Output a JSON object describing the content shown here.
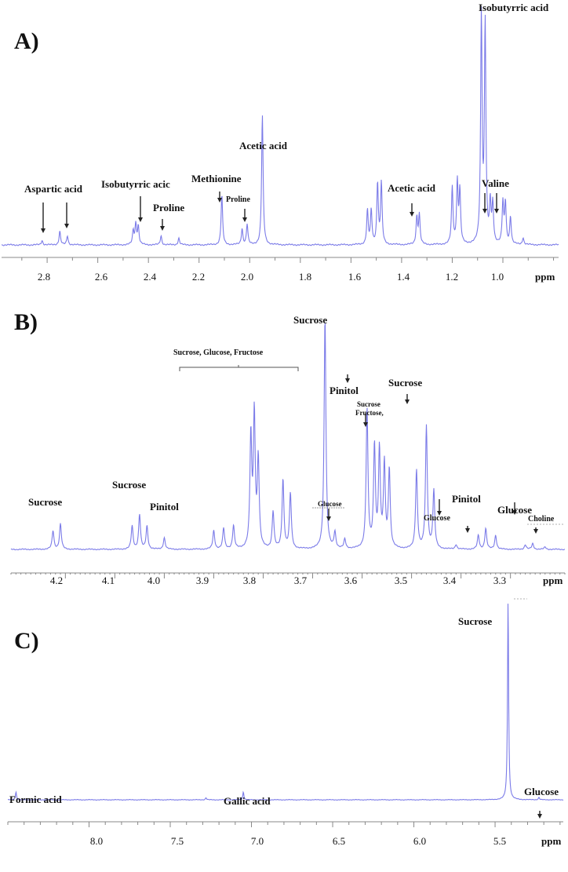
{
  "colors": {
    "spectrum": "#7b7be8",
    "axis": "#888888",
    "text": "#111111",
    "arrow": "#222222"
  },
  "chart_data": [
    {
      "panel": "A)",
      "type": "line",
      "title": "A)",
      "xlabel": "ppm",
      "xlim": [
        2.98,
        0.78
      ],
      "x_ticks": [
        2.8,
        2.6,
        2.4,
        2.2,
        2.0,
        1.8,
        1.6,
        1.4,
        1.2,
        1.0
      ],
      "x_tick_labels": [
        "2.8",
        "2.6",
        "2.4",
        "2.2",
        "2.0",
        "1.8",
        "1.6",
        "1.4",
        "1.2",
        "1.0"
      ],
      "peaks": [
        {
          "ppm": 2.82,
          "height": 0.02
        },
        {
          "ppm": 2.75,
          "height": 0.06
        },
        {
          "ppm": 2.72,
          "height": 0.04
        },
        {
          "ppm": 2.46,
          "height": 0.06
        },
        {
          "ppm": 2.45,
          "height": 0.09
        },
        {
          "ppm": 2.44,
          "height": 0.08
        },
        {
          "ppm": 2.35,
          "height": 0.04
        },
        {
          "ppm": 2.28,
          "height": 0.03
        },
        {
          "ppm": 2.11,
          "height": 0.22
        },
        {
          "ppm": 2.03,
          "height": 0.07
        },
        {
          "ppm": 2.01,
          "height": 0.09
        },
        {
          "ppm": 1.95,
          "height": 0.57
        },
        {
          "ppm": 1.535,
          "height": 0.15
        },
        {
          "ppm": 1.52,
          "height": 0.15
        },
        {
          "ppm": 1.495,
          "height": 0.27
        },
        {
          "ppm": 1.48,
          "height": 0.27
        },
        {
          "ppm": 1.34,
          "height": 0.12
        },
        {
          "ppm": 1.33,
          "height": 0.13
        },
        {
          "ppm": 1.2,
          "height": 0.25
        },
        {
          "ppm": 1.18,
          "height": 0.27
        },
        {
          "ppm": 1.17,
          "height": 0.23
        },
        {
          "ppm": 1.085,
          "height": 1.0
        },
        {
          "ppm": 1.07,
          "height": 0.96
        },
        {
          "ppm": 1.05,
          "height": 0.17
        },
        {
          "ppm": 1.04,
          "height": 0.17
        },
        {
          "ppm": 1.0,
          "height": 0.18
        },
        {
          "ppm": 0.99,
          "height": 0.18
        },
        {
          "ppm": 0.97,
          "height": 0.12
        },
        {
          "ppm": 0.92,
          "height": 0.03
        }
      ],
      "annotations": [
        {
          "label": "Isobutyrric acid",
          "ppm": 1.08
        },
        {
          "label": "Acetic acid",
          "ppm": 1.95
        },
        {
          "label": "Aspartic acid",
          "ppm": 2.82
        },
        {
          "label": "Aspartic acid",
          "ppm": 2.74
        },
        {
          "label": "Isobutyrric acid",
          "ppm": 2.45
        },
        {
          "label": "Proline",
          "ppm": 2.35
        },
        {
          "label": "Methionine",
          "ppm": 2.11
        },
        {
          "label": "Proline",
          "ppm": 2.02
        },
        {
          "label": "Acetic acid",
          "ppm": 1.335
        },
        {
          "label": "Valine",
          "ppm": 1.045
        },
        {
          "label": "Valine",
          "ppm": 0.995
        }
      ]
    },
    {
      "panel": "B)",
      "type": "line",
      "title": "B)",
      "xlabel": "ppm",
      "xlim": [
        4.31,
        3.19
      ],
      "x_ticks": [
        4.2,
        4.1,
        4.0,
        3.9,
        3.8,
        3.7,
        3.6,
        3.5,
        3.4,
        3.3
      ],
      "x_tick_labels": [
        "4.2",
        "4.1",
        "4.0",
        "3.9",
        "3.8",
        "3.7",
        "3.6",
        "3.5",
        "3.4",
        "3.3"
      ],
      "peaks": [
        {
          "ppm": 4.225,
          "height": 0.08
        },
        {
          "ppm": 4.21,
          "height": 0.11
        },
        {
          "ppm": 4.065,
          "height": 0.1
        },
        {
          "ppm": 4.05,
          "height": 0.15
        },
        {
          "ppm": 4.035,
          "height": 0.1
        },
        {
          "ppm": 4.0,
          "height": 0.05
        },
        {
          "ppm": 3.9,
          "height": 0.08
        },
        {
          "ppm": 3.88,
          "height": 0.09
        },
        {
          "ppm": 3.86,
          "height": 0.1
        },
        {
          "ppm": 3.825,
          "height": 0.48
        },
        {
          "ppm": 3.818,
          "height": 0.57
        },
        {
          "ppm": 3.81,
          "height": 0.38
        },
        {
          "ppm": 3.78,
          "height": 0.16
        },
        {
          "ppm": 3.76,
          "height": 0.3
        },
        {
          "ppm": 3.745,
          "height": 0.24
        },
        {
          "ppm": 3.675,
          "height": 1.0
        },
        {
          "ppm": 3.655,
          "height": 0.07
        },
        {
          "ppm": 3.635,
          "height": 0.04
        },
        {
          "ppm": 3.59,
          "height": 0.6
        },
        {
          "ppm": 3.575,
          "height": 0.44
        },
        {
          "ppm": 3.565,
          "height": 0.42
        },
        {
          "ppm": 3.555,
          "height": 0.36
        },
        {
          "ppm": 3.545,
          "height": 0.34
        },
        {
          "ppm": 3.49,
          "height": 0.34
        },
        {
          "ppm": 3.47,
          "height": 0.53
        },
        {
          "ppm": 3.455,
          "height": 0.25
        },
        {
          "ppm": 3.41,
          "height": 0.02
        },
        {
          "ppm": 3.365,
          "height": 0.06
        },
        {
          "ppm": 3.35,
          "height": 0.09
        },
        {
          "ppm": 3.33,
          "height": 0.06
        },
        {
          "ppm": 3.27,
          "height": 0.02
        },
        {
          "ppm": 3.255,
          "height": 0.025
        },
        {
          "ppm": 3.23,
          "height": 0.01
        }
      ],
      "annotations": [
        {
          "label": "Sucrose",
          "ppm": 4.215
        },
        {
          "label": "Sucrose",
          "ppm": 4.05
        },
        {
          "label": "Pinitol",
          "ppm": 4.0
        },
        {
          "label": "Sucrose, Glucose, Fructose",
          "range": [
            3.94,
            3.69
          ]
        },
        {
          "label": "Sucrose",
          "ppm": 3.675
        },
        {
          "label": "Glucose",
          "ppm": 3.635
        },
        {
          "label": "Pinitol",
          "ppm": 3.59
        },
        {
          "label": "Sucrose Fructose,",
          "ppm": 3.555
        },
        {
          "label": "Sucrose",
          "ppm": 3.47
        },
        {
          "label": "Glucose",
          "ppm": 3.4
        },
        {
          "label": "Pinitol",
          "ppm": 3.35
        },
        {
          "label": "Glucose",
          "ppm": 3.255
        },
        {
          "label": "Choline",
          "ppm": 3.22
        }
      ]
    },
    {
      "panel": "C)",
      "type": "line",
      "title": "C)",
      "xlabel": "ppm",
      "xlim": [
        8.5,
        5.08
      ],
      "x_ticks": [
        8.0,
        7.5,
        7.0,
        6.5,
        6.0,
        5.5
      ],
      "x_tick_labels": [
        "8.0",
        "7.5",
        "7.0",
        "6.5",
        "6.0",
        "5.5"
      ],
      "peaks": [
        {
          "ppm": 8.45,
          "height": 0.04
        },
        {
          "ppm": 7.28,
          "height": 0.01
        },
        {
          "ppm": 7.05,
          "height": 0.04
        },
        {
          "ppm": 5.42,
          "height": 1.0
        },
        {
          "ppm": 5.23,
          "height": 0.012
        }
      ],
      "annotations": [
        {
          "label": "Formic acid",
          "ppm": 8.45
        },
        {
          "label": "Gallic acid",
          "ppm": 7.05
        },
        {
          "label": "Sucrose",
          "ppm": 5.42
        },
        {
          "label": "Glucose",
          "ppm": 5.23
        }
      ]
    }
  ],
  "panels": {
    "a": {
      "label": "A)",
      "ppm": "ppm",
      "ticks": [
        "2.8",
        "2.6",
        "2.4",
        "2.2",
        "2.0",
        "1.8",
        "1.6",
        "1.4",
        "1.2",
        "1.0"
      ],
      "ann": {
        "isobutyrric_top": "Isobutyrric acid",
        "acetic_main": "Acetic acid",
        "aspartic": "Aspartic acid",
        "isobutyrric_low": "Isobutyrric acic",
        "proline1": "Proline",
        "methionine": "Methionine",
        "proline2": "Proline",
        "acetic_small": "Acetic acid",
        "valine": "Valine"
      }
    },
    "b": {
      "label": "B)",
      "ppm": "ppm",
      "ticks": [
        "4.2",
        "4.1",
        "4.0",
        "3.9",
        "3.8",
        "3.7",
        "3.6",
        "3.5",
        "3.4",
        "3.3"
      ],
      "ann": {
        "sucrose1": "Sucrose",
        "sucrose2": "Sucrose",
        "pinitol1": "Pinitol",
        "bracket": "Sucrose, Glucose, Fructose",
        "sucrose_main": "Sucrose",
        "glucose1": "Glucose",
        "pinitol2": "Pinitol",
        "sucrose_fructose_1": "Sucrose",
        "sucrose_fructose_2": "Fructose,",
        "sucrose3": "Sucrose",
        "glucose2": "Glucose",
        "pinitol3": "Pinitol",
        "glucose3": "Glucose",
        "choline": "Choline"
      }
    },
    "c": {
      "label": "C)",
      "ppm": "ppm",
      "ticks": [
        "8.0",
        "7.5",
        "7.0",
        "6.5",
        "6.0",
        "5.5"
      ],
      "ann": {
        "sucrose": "Sucrose",
        "formic": "Formic acid",
        "gallic": "Gallic acid",
        "glucose": "Glucose"
      }
    }
  }
}
